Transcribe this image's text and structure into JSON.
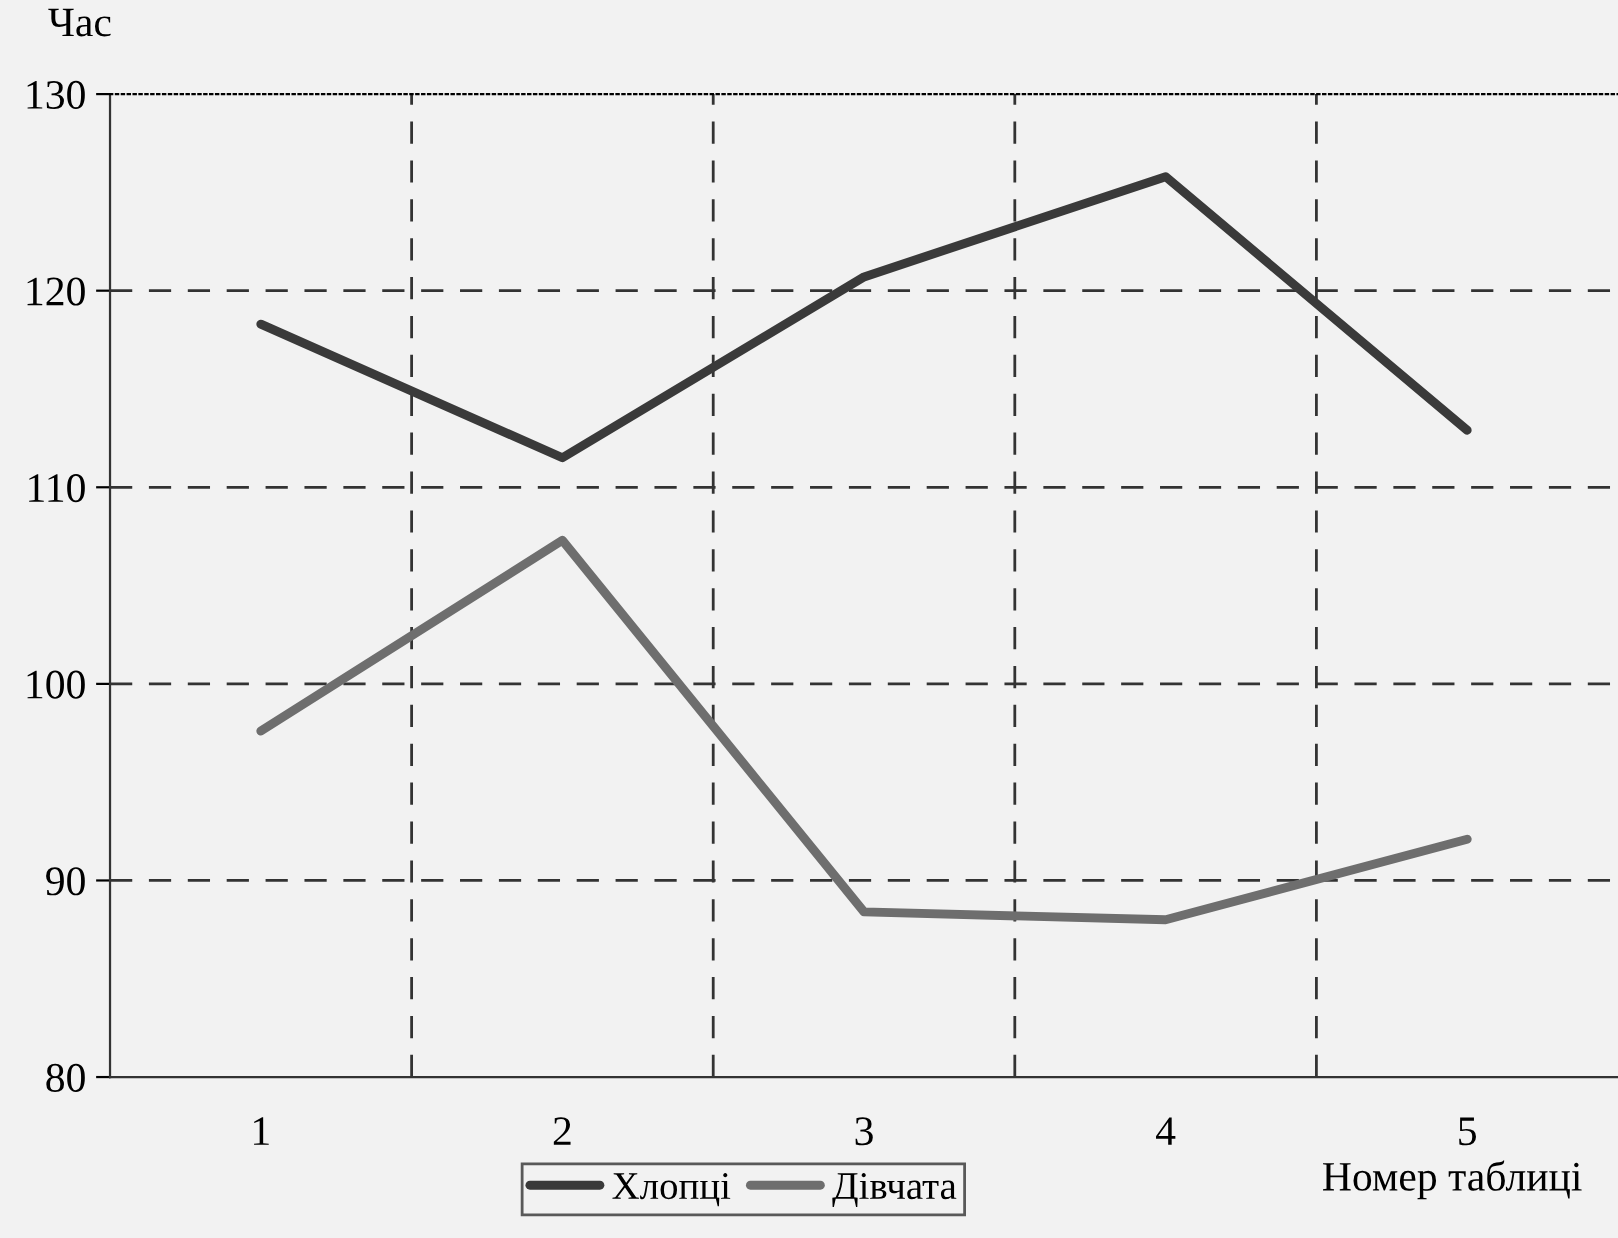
{
  "chart_data": {
    "type": "line",
    "ylabel": "Час",
    "xlabel": "Номер таблиці",
    "categories": [
      "1",
      "2",
      "3",
      "4",
      "5"
    ],
    "series": [
      {
        "name": "Хлопці",
        "color": "#3a3a3a",
        "values": [
          118.3,
          111.5,
          120.7,
          125.8,
          112.9
        ]
      },
      {
        "name": "Дівчата",
        "color": "#6e6e6e",
        "values": [
          97.6,
          107.3,
          88.4,
          88.0,
          92.1
        ]
      }
    ],
    "ylim": [
      80,
      130
    ],
    "yticks": [
      80,
      90,
      100,
      110,
      120,
      130
    ],
    "grid": true,
    "legend": "bottom",
    "marker": "none",
    "line_style": "solid"
  }
}
